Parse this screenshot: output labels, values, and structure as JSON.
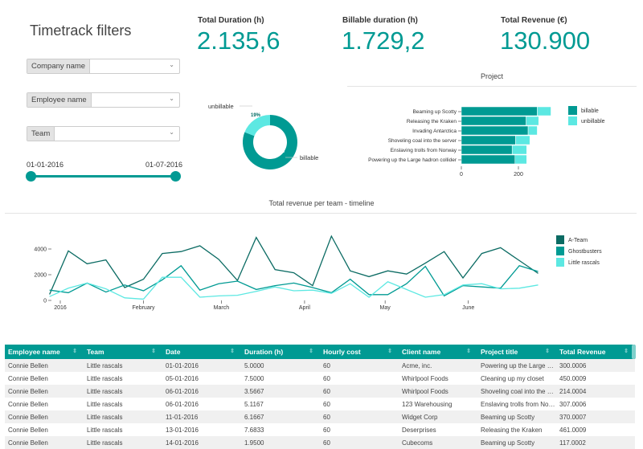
{
  "filters": {
    "title": "Timetrack filters",
    "company_label": "Company name",
    "employee_label": "Employee name",
    "team_label": "Team",
    "company_value": "",
    "employee_value": "",
    "team_value": "",
    "date_start": "01-01-2016",
    "date_end": "01-07-2016"
  },
  "kpis": [
    {
      "label": "Total Duration (h)",
      "value": "2.135,6"
    },
    {
      "label": "Billable duration (h)",
      "value": "1.729,2"
    },
    {
      "label": "Total Revenue (€)",
      "value": "130.900"
    }
  ],
  "colors": {
    "teal": "#009a93",
    "light": "#5ce8e2",
    "dark": "#0b6b63"
  },
  "chart_data": [
    {
      "type": "pie",
      "donut": true,
      "labels": [
        "billable",
        "unbillable"
      ],
      "values": [
        81,
        19
      ],
      "value_labels": [
        "81%",
        "19%"
      ],
      "colors": [
        "#009a93",
        "#5ce8e2"
      ]
    },
    {
      "type": "bar",
      "orientation": "horizontal",
      "stacked": true,
      "title": "Project",
      "categories": [
        "Beaming up Scotty",
        "Releasing the Kraken",
        "Invading Antarctica",
        "Shoveling coal into the server",
        "Enslaving trolls from Norway",
        "Powering up the Large hadron collider"
      ],
      "series": [
        {
          "name": "billable",
          "values": [
            266,
            227,
            234,
            190,
            178,
            188
          ]
        },
        {
          "name": "unbillable",
          "values": [
            48,
            44,
            32,
            50,
            51,
            41
          ]
        }
      ],
      "xticks": [
        "0",
        "200"
      ],
      "legend": "right"
    },
    {
      "type": "line",
      "title": "Total revenue per team - timeline",
      "x": [
        "2015-12-28",
        "2016-01-04",
        "2016-01-11",
        "2016-01-18",
        "2016-01-25",
        "2016-02-01",
        "2016-02-08",
        "2016-02-15",
        "2016-02-22",
        "2016-02-29",
        "2016-03-07",
        "2016-03-14",
        "2016-03-21",
        "2016-03-28",
        "2016-04-04",
        "2016-04-11",
        "2016-04-18",
        "2016-04-25",
        "2016-05-02",
        "2016-05-09",
        "2016-05-16",
        "2016-05-23",
        "2016-05-30",
        "2016-06-06",
        "2016-06-13",
        "2016-06-20",
        "2016-06-27"
      ],
      "series": [
        {
          "name": "A-Team",
          "color": "#0b6b63",
          "values": [
            470,
            3850,
            2850,
            3150,
            1000,
            1650,
            3650,
            3800,
            4250,
            3200,
            1550,
            4900,
            2400,
            2150,
            1150,
            5000,
            2300,
            1850,
            2300,
            2050,
            2900,
            3800,
            1750,
            3650,
            4100,
            3100,
            2100
          ]
        },
        {
          "name": "Ghostbusters",
          "color": "#009a93",
          "values": [
            800,
            600,
            1350,
            650,
            1200,
            750,
            1600,
            2700,
            800,
            1300,
            1500,
            850,
            1150,
            1350,
            1000,
            600,
            1650,
            450,
            450,
            1300,
            2650,
            350,
            1150,
            1050,
            950,
            2700,
            2250
          ]
        },
        {
          "name": "Little rascals",
          "color": "#5ce8e2",
          "values": [
            300,
            950,
            1350,
            900,
            200,
            100,
            1800,
            1800,
            250,
            350,
            400,
            700,
            1050,
            750,
            800,
            550,
            1300,
            250,
            1450,
            850,
            250,
            450,
            1200,
            1300,
            900,
            950,
            1200
          ]
        }
      ],
      "yticks": [
        "0",
        "2000",
        "4000"
      ],
      "xticks": [
        {
          "date": "2016-01-01",
          "label": "2016"
        },
        {
          "date": "2016-02-01",
          "label": "February"
        },
        {
          "date": "2016-03-01",
          "label": "March"
        },
        {
          "date": "2016-04-01",
          "label": "April"
        },
        {
          "date": "2016-05-01",
          "label": "May"
        },
        {
          "date": "2016-06-01",
          "label": "June"
        }
      ],
      "legend": "right"
    }
  ],
  "table": {
    "columns": [
      "Employee name",
      "Team",
      "Date",
      "Duration (h)",
      "Hourly cost",
      "Client name",
      "Project title",
      "Total Revenue"
    ],
    "rows": [
      [
        "Connie Bellen",
        "Little rascals",
        "01-01-2016",
        "5.0000",
        "60",
        "Acme, inc.",
        "Powering up the Large hadron collider",
        "300.0006"
      ],
      [
        "Connie Bellen",
        "Little rascals",
        "05-01-2016",
        "7.5000",
        "60",
        "Whirlpool Foods",
        "Cleaning up my closet",
        "450.0009"
      ],
      [
        "Connie Bellen",
        "Little rascals",
        "06-01-2016",
        "3.5667",
        "60",
        "Whirlpool Foods",
        "Shoveling coal into the server",
        "214.0004"
      ],
      [
        "Connie Bellen",
        "Little rascals",
        "06-01-2016",
        "5.1167",
        "60",
        "123 Warehousing",
        "Enslaving trolls from Norway",
        "307.0006"
      ],
      [
        "Connie Bellen",
        "Little rascals",
        "11-01-2016",
        "6.1667",
        "60",
        "Widget Corp",
        "Beaming up Scotty",
        "370.0007"
      ],
      [
        "Connie Bellen",
        "Little rascals",
        "13-01-2016",
        "7.6833",
        "60",
        "Deserprises",
        "Releasing the Kraken",
        "461.0009"
      ],
      [
        "Connie Bellen",
        "Little rascals",
        "14-01-2016",
        "1.9500",
        "60",
        "Cubecoms",
        "Beaming up Scotty",
        "117.0002"
      ]
    ]
  }
}
